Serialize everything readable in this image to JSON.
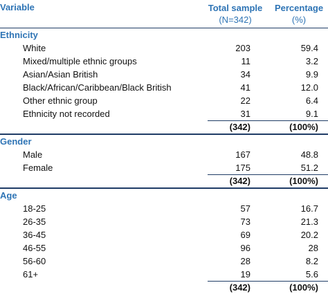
{
  "header": {
    "variable": "Variable",
    "col1_title": "Total sample",
    "col1_sub": "(N=342)",
    "col2_title": "Percentage",
    "col2_sub": "(%)"
  },
  "sections": [
    {
      "title": "Ethnicity",
      "rows": [
        {
          "label": "White",
          "n": "203",
          "p": "59.4"
        },
        {
          "label": "Mixed/multiple ethnic groups",
          "n": "11",
          "p": "3.2"
        },
        {
          "label": "Asian/Asian British",
          "n": "34",
          "p": "9.9"
        },
        {
          "label": "Black/African/Caribbean/Black British",
          "n": "41",
          "p": "12.0"
        },
        {
          "label": "Other ethnic group",
          "n": "22",
          "p": "6.4"
        },
        {
          "label": "Ethnicity not recorded",
          "n": "31",
          "p": "9.1"
        }
      ],
      "total": {
        "n": "(342)",
        "p": "(100%)"
      }
    },
    {
      "title": "Gender",
      "rows": [
        {
          "label": "Male",
          "n": "167",
          "p": "48.8"
        },
        {
          "label": "Female",
          "n": "175",
          "p": "51.2"
        }
      ],
      "total": {
        "n": "(342)",
        "p": "(100%)"
      }
    },
    {
      "title": "Age",
      "rows": [
        {
          "label": "18-25",
          "n": "57",
          "p": "16.7"
        },
        {
          "label": "26-35",
          "n": "73",
          "p": "21.3"
        },
        {
          "label": "36-45",
          "n": "69",
          "p": "20.2"
        },
        {
          "label": "46-55",
          "n": "96",
          "p": "28"
        },
        {
          "label": "56-60",
          "n": "28",
          "p": "8.2"
        },
        {
          "label": "61+",
          "n": "19",
          "p": "5.6"
        }
      ],
      "total": {
        "n": "(342)",
        "p": "(100%)"
      }
    }
  ]
}
